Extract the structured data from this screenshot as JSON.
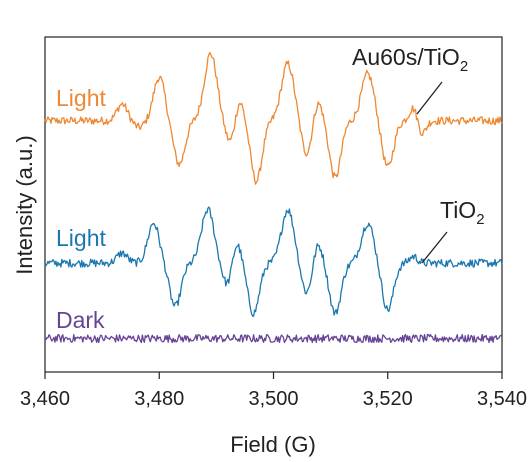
{
  "chart_data": {
    "type": "line",
    "xlabel": "Field (G)",
    "ylabel": "Intensity (a.u.)",
    "xlim": [
      3460,
      3540
    ],
    "xticks": [
      "3,460",
      "3,480",
      "3,500",
      "3,520",
      "3,540"
    ],
    "xtick_values": [
      3460,
      3480,
      3500,
      3520,
      3540
    ],
    "ylim": [
      0,
      1
    ],
    "grid": false,
    "series": [
      {
        "name": "Light",
        "sample": "Au60s/TiO",
        "sample_sub": "2",
        "color": "#EE8833",
        "baseline": 0.75,
        "noise": 0.012,
        "peaks": [
          {
            "x": 3473.5,
            "amp": 0.05,
            "w": 0.9
          },
          {
            "x": 3476.5,
            "amp": -0.02,
            "w": 0.9
          },
          {
            "x": 3480.0,
            "amp": 0.13,
            "w": 1.0
          },
          {
            "x": 3483.5,
            "amp": -0.13,
            "w": 1.0
          },
          {
            "x": 3489.0,
            "amp": 0.2,
            "w": 1.1
          },
          {
            "x": 3492.5,
            "amp": -0.07,
            "w": 0.9
          },
          {
            "x": 3494.0,
            "amp": 0.07,
            "w": 0.8
          },
          {
            "x": 3497.0,
            "amp": -0.18,
            "w": 1.0
          },
          {
            "x": 3502.5,
            "amp": 0.17,
            "w": 1.1
          },
          {
            "x": 3505.8,
            "amp": -0.1,
            "w": 0.9
          },
          {
            "x": 3507.8,
            "amp": 0.06,
            "w": 0.8
          },
          {
            "x": 3510.8,
            "amp": -0.17,
            "w": 1.0
          },
          {
            "x": 3516.5,
            "amp": 0.14,
            "w": 1.1
          },
          {
            "x": 3520.0,
            "amp": -0.14,
            "w": 1.0
          },
          {
            "x": 3524.5,
            "amp": 0.04,
            "w": 0.7
          },
          {
            "x": 3526.0,
            "amp": -0.04,
            "w": 0.7
          }
        ]
      },
      {
        "name": "Light",
        "sample": "TiO",
        "sample_sub": "2",
        "color": "#1B78AE",
        "baseline": 0.325,
        "noise": 0.012,
        "peaks": [
          {
            "x": 3473.5,
            "amp": 0.03,
            "w": 0.9
          },
          {
            "x": 3479.0,
            "amp": 0.12,
            "w": 1.0
          },
          {
            "x": 3482.8,
            "amp": -0.13,
            "w": 1.0
          },
          {
            "x": 3488.5,
            "amp": 0.16,
            "w": 1.1
          },
          {
            "x": 3492.0,
            "amp": -0.07,
            "w": 0.9
          },
          {
            "x": 3493.5,
            "amp": 0.07,
            "w": 0.8
          },
          {
            "x": 3496.5,
            "amp": -0.15,
            "w": 1.0
          },
          {
            "x": 3502.5,
            "amp": 0.16,
            "w": 1.1
          },
          {
            "x": 3505.8,
            "amp": -0.09,
            "w": 0.9
          },
          {
            "x": 3507.8,
            "amp": 0.06,
            "w": 0.8
          },
          {
            "x": 3510.8,
            "amp": -0.15,
            "w": 1.0
          },
          {
            "x": 3516.5,
            "amp": 0.12,
            "w": 1.1
          },
          {
            "x": 3520.0,
            "amp": -0.14,
            "w": 1.0
          },
          {
            "x": 3524.5,
            "amp": 0.02,
            "w": 0.7
          }
        ]
      },
      {
        "name": "Dark",
        "color": "#654496",
        "baseline": 0.1,
        "noise": 0.012,
        "peaks": []
      }
    ]
  }
}
